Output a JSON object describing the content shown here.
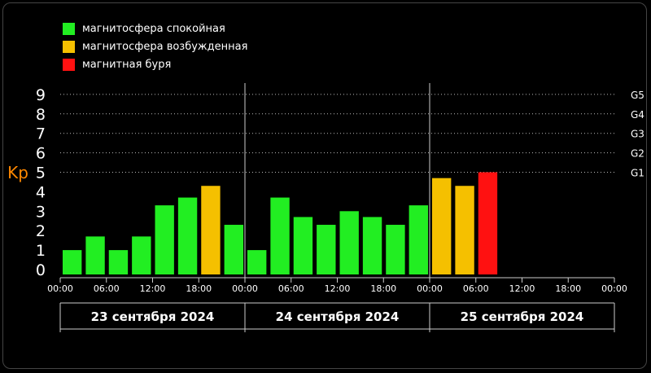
{
  "colors": {
    "quiet": "#22ee22",
    "excited": "#f5c000",
    "storm": "#ff1111",
    "kp_label": "#ff8800",
    "background": "#000000"
  },
  "legend": [
    {
      "label": "магнитосфера спокойная",
      "color": "#22ee22"
    },
    {
      "label": "магнитосфера возбужденная",
      "color": "#f5c000"
    },
    {
      "label": "магнитная буря",
      "color": "#ff1111"
    }
  ],
  "chart_data": {
    "type": "bar",
    "ylabel": "Kp",
    "ylim": [
      0,
      9
    ],
    "yticks": [
      "0",
      "1",
      "2",
      "3",
      "4",
      "5",
      "6",
      "7",
      "8",
      "9"
    ],
    "g_levels": [
      {
        "label": "G1",
        "value": 5
      },
      {
        "label": "G2",
        "value": 6
      },
      {
        "label": "G3",
        "value": 7
      },
      {
        "label": "G4",
        "value": 8
      },
      {
        "label": "G5",
        "value": 9
      }
    ],
    "x_ticks": [
      "00:00",
      "06:00",
      "12:00",
      "18:00",
      "00:00",
      "06:00",
      "12:00",
      "18:00",
      "00:00",
      "06:00",
      "12:00",
      "18:00",
      "00:00"
    ],
    "days": [
      "23 сентября 2024",
      "24 сентября 2024",
      "25 сентября 2024"
    ],
    "grid": "dotted horizontal at Kp 5–9",
    "bars": [
      {
        "time": "23 сентября 2024 00:00",
        "kp": 1.0,
        "level": "quiet"
      },
      {
        "time": "23 сентября 2024 03:00",
        "kp": 1.7,
        "level": "quiet"
      },
      {
        "time": "23 сентября 2024 06:00",
        "kp": 1.0,
        "level": "quiet"
      },
      {
        "time": "23 сентября 2024 09:00",
        "kp": 1.7,
        "level": "quiet"
      },
      {
        "time": "23 сентября 2024 12:00",
        "kp": 3.3,
        "level": "quiet"
      },
      {
        "time": "23 сентября 2024 15:00",
        "kp": 3.7,
        "level": "quiet"
      },
      {
        "time": "23 сентября 2024 18:00",
        "kp": 4.3,
        "level": "excited"
      },
      {
        "time": "23 сентября 2024 21:00",
        "kp": 2.3,
        "level": "quiet"
      },
      {
        "time": "24 сентября 2024 00:00",
        "kp": 1.0,
        "level": "quiet"
      },
      {
        "time": "24 сентября 2024 03:00",
        "kp": 3.7,
        "level": "quiet"
      },
      {
        "time": "24 сентября 2024 06:00",
        "kp": 2.7,
        "level": "quiet"
      },
      {
        "time": "24 сентября 2024 09:00",
        "kp": 2.3,
        "level": "quiet"
      },
      {
        "time": "24 сентября 2024 12:00",
        "kp": 3.0,
        "level": "quiet"
      },
      {
        "time": "24 сентября 2024 15:00",
        "kp": 2.7,
        "level": "quiet"
      },
      {
        "time": "24 сентября 2024 18:00",
        "kp": 2.3,
        "level": "quiet"
      },
      {
        "time": "24 сентября 2024 21:00",
        "kp": 3.3,
        "level": "quiet"
      },
      {
        "time": "25 сентября 2024 00:00",
        "kp": 4.7,
        "level": "excited"
      },
      {
        "time": "25 сентября 2024 03:00",
        "kp": 4.3,
        "level": "excited"
      },
      {
        "time": "25 сентября 2024 06:00",
        "kp": 5.0,
        "level": "storm"
      }
    ]
  }
}
